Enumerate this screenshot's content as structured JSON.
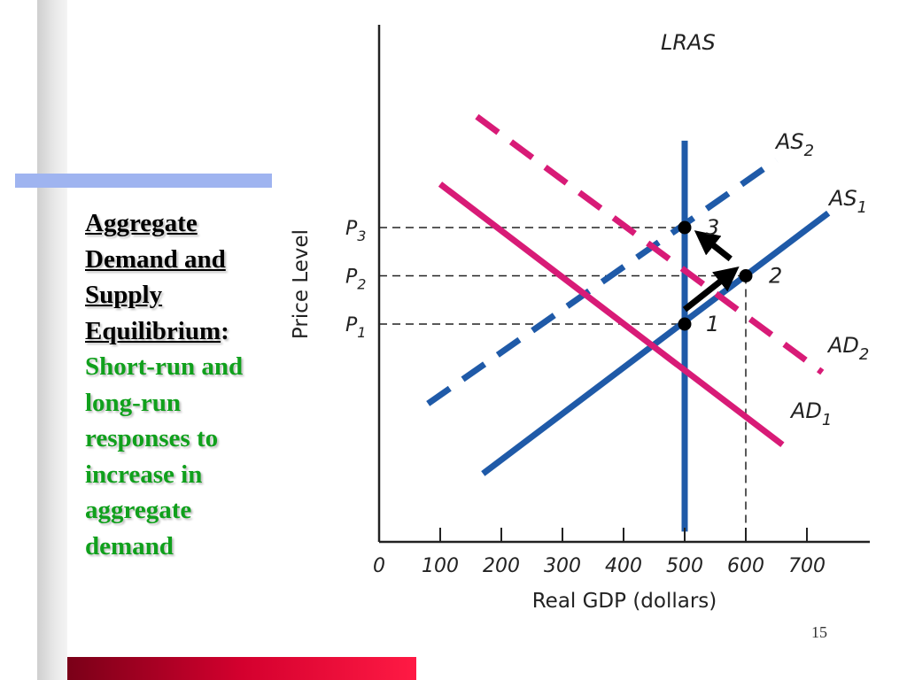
{
  "slide": {
    "title_lines": [
      "Aggregate",
      "Demand and",
      "Supply",
      "Equilibrium"
    ],
    "title_suffix": ":",
    "subtitle_lines": [
      "Short-run and",
      "long-run",
      "responses to",
      "increase in",
      "aggregate",
      "demand"
    ],
    "page_number": "15"
  },
  "colors": {
    "supply": "#1f5aa8",
    "demand": "#d81b77",
    "arrow": "#000000",
    "guide": "#222222"
  },
  "chart_data": {
    "type": "line",
    "xlabel": "Real GDP (dollars)",
    "ylabel": "Price Level",
    "x_ticks": [
      "0",
      "100",
      "200",
      "300",
      "400",
      "500",
      "600",
      "700"
    ],
    "xlim": [
      0,
      800
    ],
    "y_ticks": [
      {
        "base": "P",
        "sub": "1",
        "value": 1
      },
      {
        "base": "P",
        "sub": "2",
        "value": 2
      },
      {
        "base": "P",
        "sub": "3",
        "value": 3
      }
    ],
    "series": [
      {
        "name": "LRAS",
        "kind": "supply",
        "dashed": false,
        "points": [
          [
            500,
            4.8
          ],
          [
            500,
            -3.3
          ]
        ]
      },
      {
        "name_base": "AS",
        "name_sub": "1",
        "kind": "supply",
        "dashed": false,
        "points": [
          [
            170,
            -2.1
          ],
          [
            735,
            3.3
          ]
        ]
      },
      {
        "name_base": "AS",
        "name_sub": "2",
        "kind": "supply",
        "dashed": true,
        "points": [
          [
            80,
            -0.65
          ],
          [
            650,
            4.4
          ]
        ]
      },
      {
        "name_base": "AD",
        "name_sub": "1",
        "kind": "demand",
        "dashed": false,
        "points": [
          [
            100,
            3.9
          ],
          [
            660,
            -1.5
          ]
        ]
      },
      {
        "name_base": "AD",
        "name_sub": "2",
        "kind": "demand",
        "dashed": true,
        "points": [
          [
            160,
            5.3
          ],
          [
            725,
            0.0
          ]
        ]
      }
    ],
    "equilibria": [
      {
        "label": "1",
        "x": 500,
        "y": 1
      },
      {
        "label": "2",
        "x": 600,
        "y": 2
      },
      {
        "label": "3",
        "x": 500,
        "y": 3
      }
    ],
    "arrows": [
      {
        "from": [
          500,
          1.3
        ],
        "to": [
          575,
          2.05
        ]
      },
      {
        "from": [
          575,
          2.35
        ],
        "to": [
          530,
          2.8
        ]
      }
    ]
  }
}
